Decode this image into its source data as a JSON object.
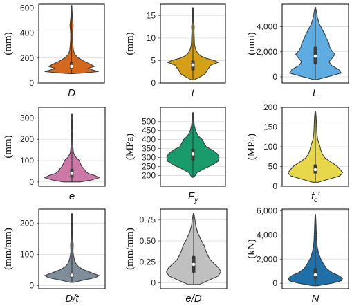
{
  "chart_data": [
    {
      "type": "violin",
      "ylabel": "(mm)",
      "xlabel": "D",
      "xlabel_sub": "",
      "xlabel_prime": "",
      "ylim": [
        0,
        630
      ],
      "yticks": [
        0,
        200,
        400,
        600
      ],
      "ytick_labels": [
        "0",
        "200",
        "400",
        "600"
      ],
      "color": "#d2691e",
      "grid": true,
      "distribution": {
        "min": 75,
        "max": 620,
        "q1": 112,
        "median": 133,
        "q3": 168,
        "profile": [
          [
            75,
            0.05
          ],
          [
            82,
            0.55
          ],
          [
            92,
            1.0
          ],
          [
            105,
            0.78
          ],
          [
            118,
            0.62
          ],
          [
            133,
            0.85
          ],
          [
            150,
            0.7
          ],
          [
            170,
            0.5
          ],
          [
            185,
            0.38
          ],
          [
            205,
            0.22
          ],
          [
            230,
            0.12
          ],
          [
            260,
            0.07
          ],
          [
            300,
            0.05
          ],
          [
            350,
            0.035
          ],
          [
            400,
            0.035
          ],
          [
            440,
            0.05
          ],
          [
            460,
            0.06
          ],
          [
            480,
            0.05
          ],
          [
            520,
            0.03
          ],
          [
            570,
            0.02
          ],
          [
            620,
            0.01
          ]
        ]
      }
    },
    {
      "type": "violin",
      "ylabel": "(mm)",
      "xlabel": "t",
      "xlabel_sub": "",
      "xlabel_prime": "",
      "ylim": [
        0,
        17.5
      ],
      "yticks": [
        0,
        5,
        10,
        15
      ],
      "ytick_labels": [
        "0",
        "5",
        "10",
        "15"
      ],
      "color": "#d4a017",
      "grid": true,
      "distribution": {
        "min": 0.7,
        "max": 16.7,
        "q1": 2.8,
        "median": 4.0,
        "q3": 5.0,
        "profile": [
          [
            0.7,
            0.05
          ],
          [
            1.2,
            0.22
          ],
          [
            2.0,
            0.45
          ],
          [
            3.0,
            0.55
          ],
          [
            4.0,
            0.68
          ],
          [
            4.6,
            0.95
          ],
          [
            5.0,
            0.8
          ],
          [
            5.5,
            0.5
          ],
          [
            6.0,
            0.3
          ],
          [
            6.6,
            0.18
          ],
          [
            7.5,
            0.1
          ],
          [
            8.5,
            0.06
          ],
          [
            10,
            0.05
          ],
          [
            11.5,
            0.04
          ],
          [
            12.5,
            0.05
          ],
          [
            13.5,
            0.03
          ],
          [
            15,
            0.02
          ],
          [
            16.7,
            0.01
          ]
        ]
      }
    },
    {
      "type": "violin",
      "ylabel": "(mm)",
      "xlabel": "L",
      "xlabel_sub": "",
      "xlabel_prime": "",
      "ylim": [
        -500,
        5800
      ],
      "yticks": [
        0,
        2000,
        4000
      ],
      "ytick_labels": [
        "0",
        "2,000",
        "4,000"
      ],
      "color": "#5dade2",
      "grid": true,
      "distribution": {
        "min": -230,
        "max": 5550,
        "q1": 1000,
        "median": 1650,
        "q3": 2400,
        "profile": [
          [
            -230,
            0.05
          ],
          [
            0,
            0.45
          ],
          [
            300,
            0.95
          ],
          [
            600,
            0.85
          ],
          [
            900,
            0.6
          ],
          [
            1200,
            0.5
          ],
          [
            1500,
            0.62
          ],
          [
            1800,
            0.72
          ],
          [
            2100,
            0.6
          ],
          [
            2400,
            0.52
          ],
          [
            2700,
            0.5
          ],
          [
            3000,
            0.42
          ],
          [
            3400,
            0.35
          ],
          [
            3800,
            0.25
          ],
          [
            4200,
            0.15
          ],
          [
            4700,
            0.08
          ],
          [
            5200,
            0.04
          ],
          [
            5550,
            0.01
          ]
        ]
      }
    },
    {
      "type": "violin",
      "ylabel": "(mm)",
      "xlabel": "e",
      "xlabel_sub": "",
      "xlabel_prime": "",
      "ylim": [
        -20,
        350
      ],
      "yticks": [
        0,
        100,
        200,
        300
      ],
      "ytick_labels": [
        "0",
        "100",
        "200",
        "300"
      ],
      "color": "#cc79a7",
      "grid": true,
      "distribution": {
        "min": 0,
        "max": 320,
        "q1": 20,
        "median": 40,
        "q3": 62,
        "profile": [
          [
            0,
            0.3
          ],
          [
            10,
            0.75
          ],
          [
            20,
            1.0
          ],
          [
            30,
            0.85
          ],
          [
            40,
            0.6
          ],
          [
            50,
            0.5
          ],
          [
            60,
            0.45
          ],
          [
            75,
            0.35
          ],
          [
            90,
            0.3
          ],
          [
            100,
            0.28
          ],
          [
            115,
            0.15
          ],
          [
            135,
            0.06
          ],
          [
            160,
            0.04
          ],
          [
            190,
            0.03
          ],
          [
            215,
            0.02
          ],
          [
            240,
            0.03
          ],
          [
            260,
            0.02
          ],
          [
            290,
            0.01
          ],
          [
            320,
            0.01
          ]
        ]
      }
    },
    {
      "type": "violin",
      "ylabel": "(MPa)",
      "xlabel": "F",
      "xlabel_sub": "y",
      "xlabel_prime": "",
      "ylim": [
        140,
        580
      ],
      "yticks": [
        200,
        250,
        300,
        350,
        400,
        450,
        500
      ],
      "ytick_labels": [
        "200",
        "250",
        "300",
        "350",
        "400",
        "450",
        "500"
      ],
      "color": "#1a9b6c",
      "grid": true,
      "distribution": {
        "min": 190,
        "max": 550,
        "q1": 283,
        "median": 320,
        "q3": 350,
        "profile": [
          [
            190,
            0.04
          ],
          [
            215,
            0.15
          ],
          [
            240,
            0.45
          ],
          [
            260,
            0.75
          ],
          [
            280,
            0.95
          ],
          [
            300,
            0.98
          ],
          [
            320,
            0.92
          ],
          [
            340,
            0.75
          ],
          [
            360,
            0.5
          ],
          [
            380,
            0.42
          ],
          [
            400,
            0.35
          ],
          [
            420,
            0.2
          ],
          [
            450,
            0.1
          ],
          [
            480,
            0.05
          ],
          [
            510,
            0.03
          ],
          [
            550,
            0.01
          ]
        ]
      }
    },
    {
      "type": "violin",
      "ylabel": "(MPa)",
      "xlabel": "f",
      "xlabel_sub": "c",
      "xlabel_prime": "′",
      "ylim": [
        0,
        200
      ],
      "yticks": [
        0,
        50,
        100,
        150,
        200
      ],
      "ytick_labels": [
        "0",
        "50",
        "100",
        "150",
        "200"
      ],
      "color": "#e6d84a",
      "grid": true,
      "distribution": {
        "min": 10,
        "max": 190,
        "q1": 32,
        "median": 42,
        "q3": 55,
        "profile": [
          [
            10,
            0.1
          ],
          [
            18,
            0.5
          ],
          [
            26,
            0.9
          ],
          [
            34,
            1.0
          ],
          [
            42,
            0.92
          ],
          [
            52,
            0.78
          ],
          [
            62,
            0.55
          ],
          [
            72,
            0.35
          ],
          [
            82,
            0.25
          ],
          [
            92,
            0.2
          ],
          [
            105,
            0.15
          ],
          [
            120,
            0.08
          ],
          [
            140,
            0.05
          ],
          [
            160,
            0.04
          ],
          [
            175,
            0.03
          ],
          [
            190,
            0.01
          ]
        ]
      }
    },
    {
      "type": "violin",
      "ylabel": "(mm/mm)",
      "xlabel": "D/t",
      "xlabel_sub": "",
      "xlabel_prime": "",
      "ylim": [
        -10,
        245
      ],
      "yticks": [
        0,
        100,
        200
      ],
      "ytick_labels": [
        "0",
        "100",
        "200"
      ],
      "color": "#7f8c9a",
      "grid": true,
      "distribution": {
        "min": 10,
        "max": 230,
        "q1": 26,
        "median": 33,
        "q3": 42,
        "profile": [
          [
            10,
            0.05
          ],
          [
            18,
            0.45
          ],
          [
            25,
            0.85
          ],
          [
            32,
            1.0
          ],
          [
            40,
            0.75
          ],
          [
            50,
            0.45
          ],
          [
            60,
            0.25
          ],
          [
            70,
            0.15
          ],
          [
            80,
            0.1
          ],
          [
            95,
            0.06
          ],
          [
            110,
            0.04
          ],
          [
            130,
            0.05
          ],
          [
            150,
            0.03
          ],
          [
            175,
            0.02
          ],
          [
            200,
            0.02
          ],
          [
            230,
            0.01
          ]
        ]
      }
    },
    {
      "type": "violin",
      "ylabel": "(mm/mm)",
      "xlabel": "e/D",
      "xlabel_sub": "",
      "xlabel_prime": "",
      "ylim": [
        -0.07,
        0.88
      ],
      "yticks": [
        0,
        0.25,
        0.5,
        0.75
      ],
      "ytick_labels": [
        "0",
        "0.25",
        "0.50",
        "0.75"
      ],
      "color": "#c0c0c0",
      "grid": true,
      "distribution": {
        "min": -0.02,
        "max": 0.83,
        "q1": 0.12,
        "median": 0.22,
        "q3": 0.32,
        "profile": [
          [
            -0.02,
            0.2
          ],
          [
            0.03,
            0.55
          ],
          [
            0.08,
            0.9
          ],
          [
            0.13,
            1.0
          ],
          [
            0.18,
            0.92
          ],
          [
            0.23,
            0.75
          ],
          [
            0.28,
            0.6
          ],
          [
            0.33,
            0.52
          ],
          [
            0.38,
            0.45
          ],
          [
            0.45,
            0.38
          ],
          [
            0.52,
            0.26
          ],
          [
            0.6,
            0.15
          ],
          [
            0.68,
            0.08
          ],
          [
            0.75,
            0.05
          ],
          [
            0.83,
            0.01
          ]
        ]
      }
    },
    {
      "type": "violin",
      "ylabel": "(kN)",
      "xlabel": "N",
      "xlabel_sub": "",
      "xlabel_prime": "",
      "ylim": [
        -450,
        6150
      ],
      "yticks": [
        0,
        2000,
        4000,
        6000
      ],
      "ytick_labels": [
        "0",
        "2,000",
        "4,000",
        "6,000"
      ],
      "color": "#1f6fa8",
      "grid": true,
      "distribution": {
        "min": -200,
        "max": 5700,
        "q1": 350,
        "median": 700,
        "q3": 1250,
        "profile": [
          [
            -200,
            0.1
          ],
          [
            0,
            0.6
          ],
          [
            200,
            0.95
          ],
          [
            400,
            1.0
          ],
          [
            650,
            0.85
          ],
          [
            900,
            0.6
          ],
          [
            1200,
            0.42
          ],
          [
            1600,
            0.3
          ],
          [
            2000,
            0.2
          ],
          [
            2500,
            0.12
          ],
          [
            3000,
            0.07
          ],
          [
            3500,
            0.05
          ],
          [
            4000,
            0.04
          ],
          [
            4600,
            0.03
          ],
          [
            5200,
            0.02
          ],
          [
            5700,
            0.01
          ]
        ]
      }
    }
  ]
}
